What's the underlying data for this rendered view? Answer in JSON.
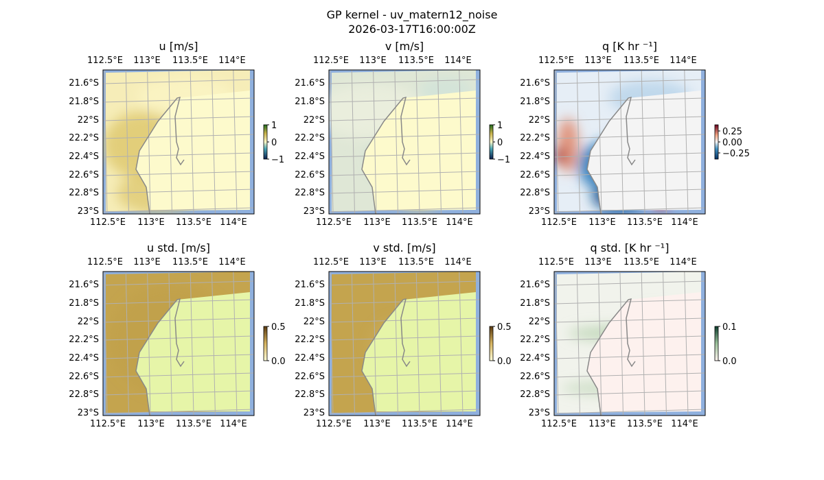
{
  "figure": {
    "title": "GP kernel - uv_matern12_noise",
    "subtitle": "2026-03-17T16:00:00Z"
  },
  "colors": {
    "ocean": "#8fb0de",
    "land_std": "#e6f5a8",
    "grid": "#b0b0b0",
    "coast": "#888888"
  },
  "chart_data": {
    "type": "heatmap",
    "x_ticks": [
      "112.5°E",
      "113°E",
      "113.5°E",
      "114°E"
    ],
    "y_ticks": [
      "21.6°S",
      "21.8°S",
      "22°S",
      "22.2°S",
      "22.4°S",
      "22.6°S",
      "22.8°S",
      "23°S"
    ],
    "panels": [
      {
        "title": "u [m/s]",
        "cbar_ticks": [
          "1",
          "0",
          "−1"
        ],
        "vmin": -1,
        "vmax": 1,
        "base": "#f6edb8",
        "land": "#fdfacc"
      },
      {
        "title": "v [m/s]",
        "cbar_ticks": [
          "1",
          "0",
          "−1"
        ],
        "vmin": -1,
        "vmax": 1,
        "base": "#dfe7d6",
        "land": "#fdfacc"
      },
      {
        "title": "q [K hr ⁻¹]",
        "cbar_ticks": [
          "0.25",
          "0.00",
          "−0.25"
        ],
        "vmin": -0.4,
        "vmax": 0.4,
        "base": "#e6eef6",
        "land": "#f4f4f4"
      },
      {
        "title": "u std. [m/s]",
        "cbar_ticks": [
          "0.5",
          "0.0"
        ],
        "vmin": 0,
        "vmax": 0.5,
        "base": "#c4a44e",
        "land": "#e6f5a8"
      },
      {
        "title": "v std. [m/s]",
        "cbar_ticks": [
          "0.5",
          "0.0"
        ],
        "vmin": 0,
        "vmax": 0.5,
        "base": "#c4a44e",
        "land": "#e6f5a8"
      },
      {
        "title": "q std. [K hr ⁻¹]",
        "cbar_ticks": [
          "0.1",
          "0.0"
        ],
        "vmin": 0,
        "vmax": 0.1,
        "base": "#f1f3ec",
        "land": "#fdf1ee"
      }
    ]
  }
}
